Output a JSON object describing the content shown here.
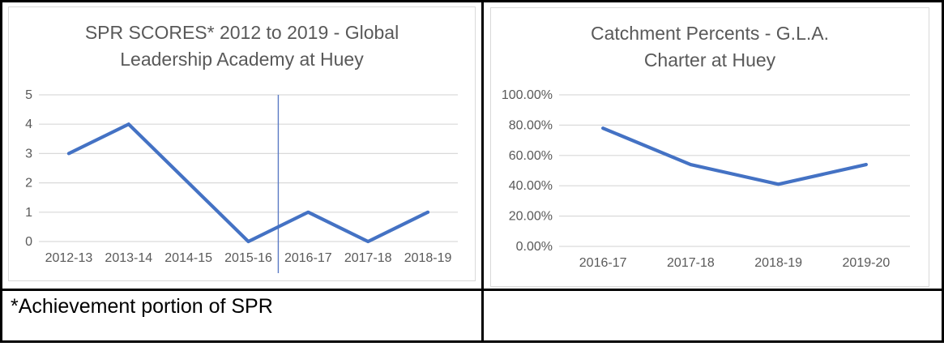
{
  "footnote": "*Achievement portion of SPR",
  "colors": {
    "line": "#4472C4",
    "gridline": "#D9D9D9",
    "axis_text": "#595959",
    "title_text": "#595959",
    "vline": "#5B7BC5",
    "table_border": "#000000",
    "chart_frame": "#D9D9D9"
  },
  "chart_data": [
    {
      "type": "line",
      "title": "SPR SCORES* 2012 to 2019 - Global Leadership Academy at Huey",
      "title_lines": [
        "SPR SCORES* 2012 to 2019 - Global",
        "Leadership Academy at Huey"
      ],
      "categories": [
        "2012-13",
        "2013-14",
        "2014-15",
        "2015-16",
        "2016-17",
        "2017-18",
        "2018-19"
      ],
      "values": [
        3,
        4,
        2,
        0,
        1,
        0,
        1
      ],
      "ylim": [
        0,
        5
      ],
      "ytick_step": 1,
      "ytick_labels": [
        "0",
        "1",
        "2",
        "3",
        "4",
        "5"
      ],
      "grid": true,
      "legend": "none",
      "vline_after_category": "2015-16",
      "vline_after_index": 3
    },
    {
      "type": "line",
      "title": "Catchment Percents - G.L.A. Charter at Huey",
      "title_lines": [
        "Catchment Percents - G.L.A.",
        "Charter at Huey"
      ],
      "categories": [
        "2016-17",
        "2017-18",
        "2018-19",
        "2019-20"
      ],
      "values": [
        78,
        54,
        41,
        54
      ],
      "ylim": [
        0,
        100
      ],
      "ytick_step": 20,
      "ytick_labels": [
        "0.00%",
        "20.00%",
        "40.00%",
        "60.00%",
        "80.00%",
        "100.00%"
      ],
      "grid": true,
      "legend": "none"
    }
  ]
}
